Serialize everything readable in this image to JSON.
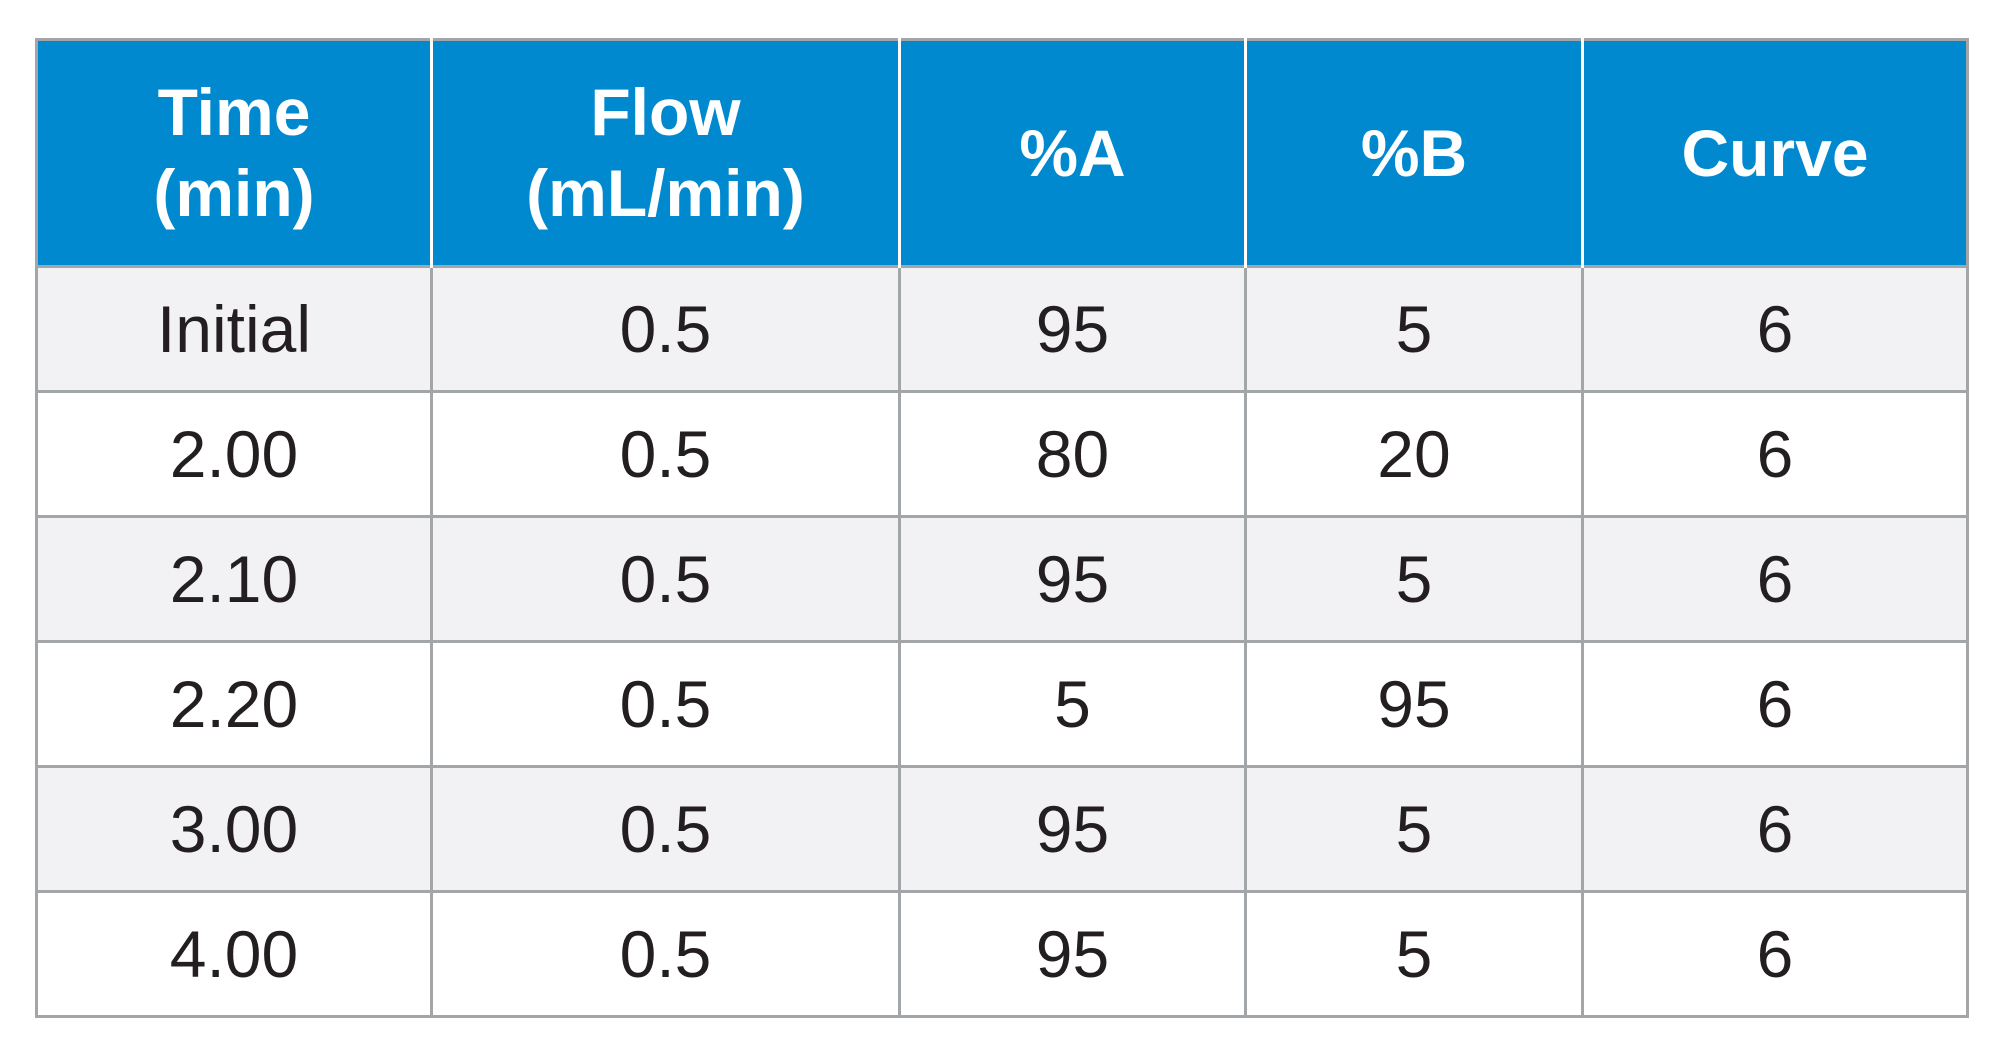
{
  "table": {
    "columns": [
      {
        "line1": "Time",
        "line2": "(min)"
      },
      {
        "line1": "Flow",
        "line2": "(mL/min)"
      },
      {
        "line1": "%A",
        "line2": ""
      },
      {
        "line1": "%B",
        "line2": ""
      },
      {
        "line1": "Curve",
        "line2": ""
      }
    ],
    "rows": [
      [
        "Initial",
        "0.5",
        "95",
        "5",
        "6"
      ],
      [
        "2.00",
        "0.5",
        "80",
        "20",
        "6"
      ],
      [
        "2.10",
        "0.5",
        "95",
        "5",
        "6"
      ],
      [
        "2.20",
        "0.5",
        "5",
        "95",
        "6"
      ],
      [
        "3.00",
        "0.5",
        "95",
        "5",
        "6"
      ],
      [
        "4.00",
        "0.5",
        "95",
        "5",
        "6"
      ]
    ]
  },
  "colors": {
    "header_bg": "#0089cf",
    "header_text": "#ffffff",
    "row_alt_bg": "#f2f2f4",
    "border": "#a3a6a9",
    "body_text": "#231f20"
  }
}
